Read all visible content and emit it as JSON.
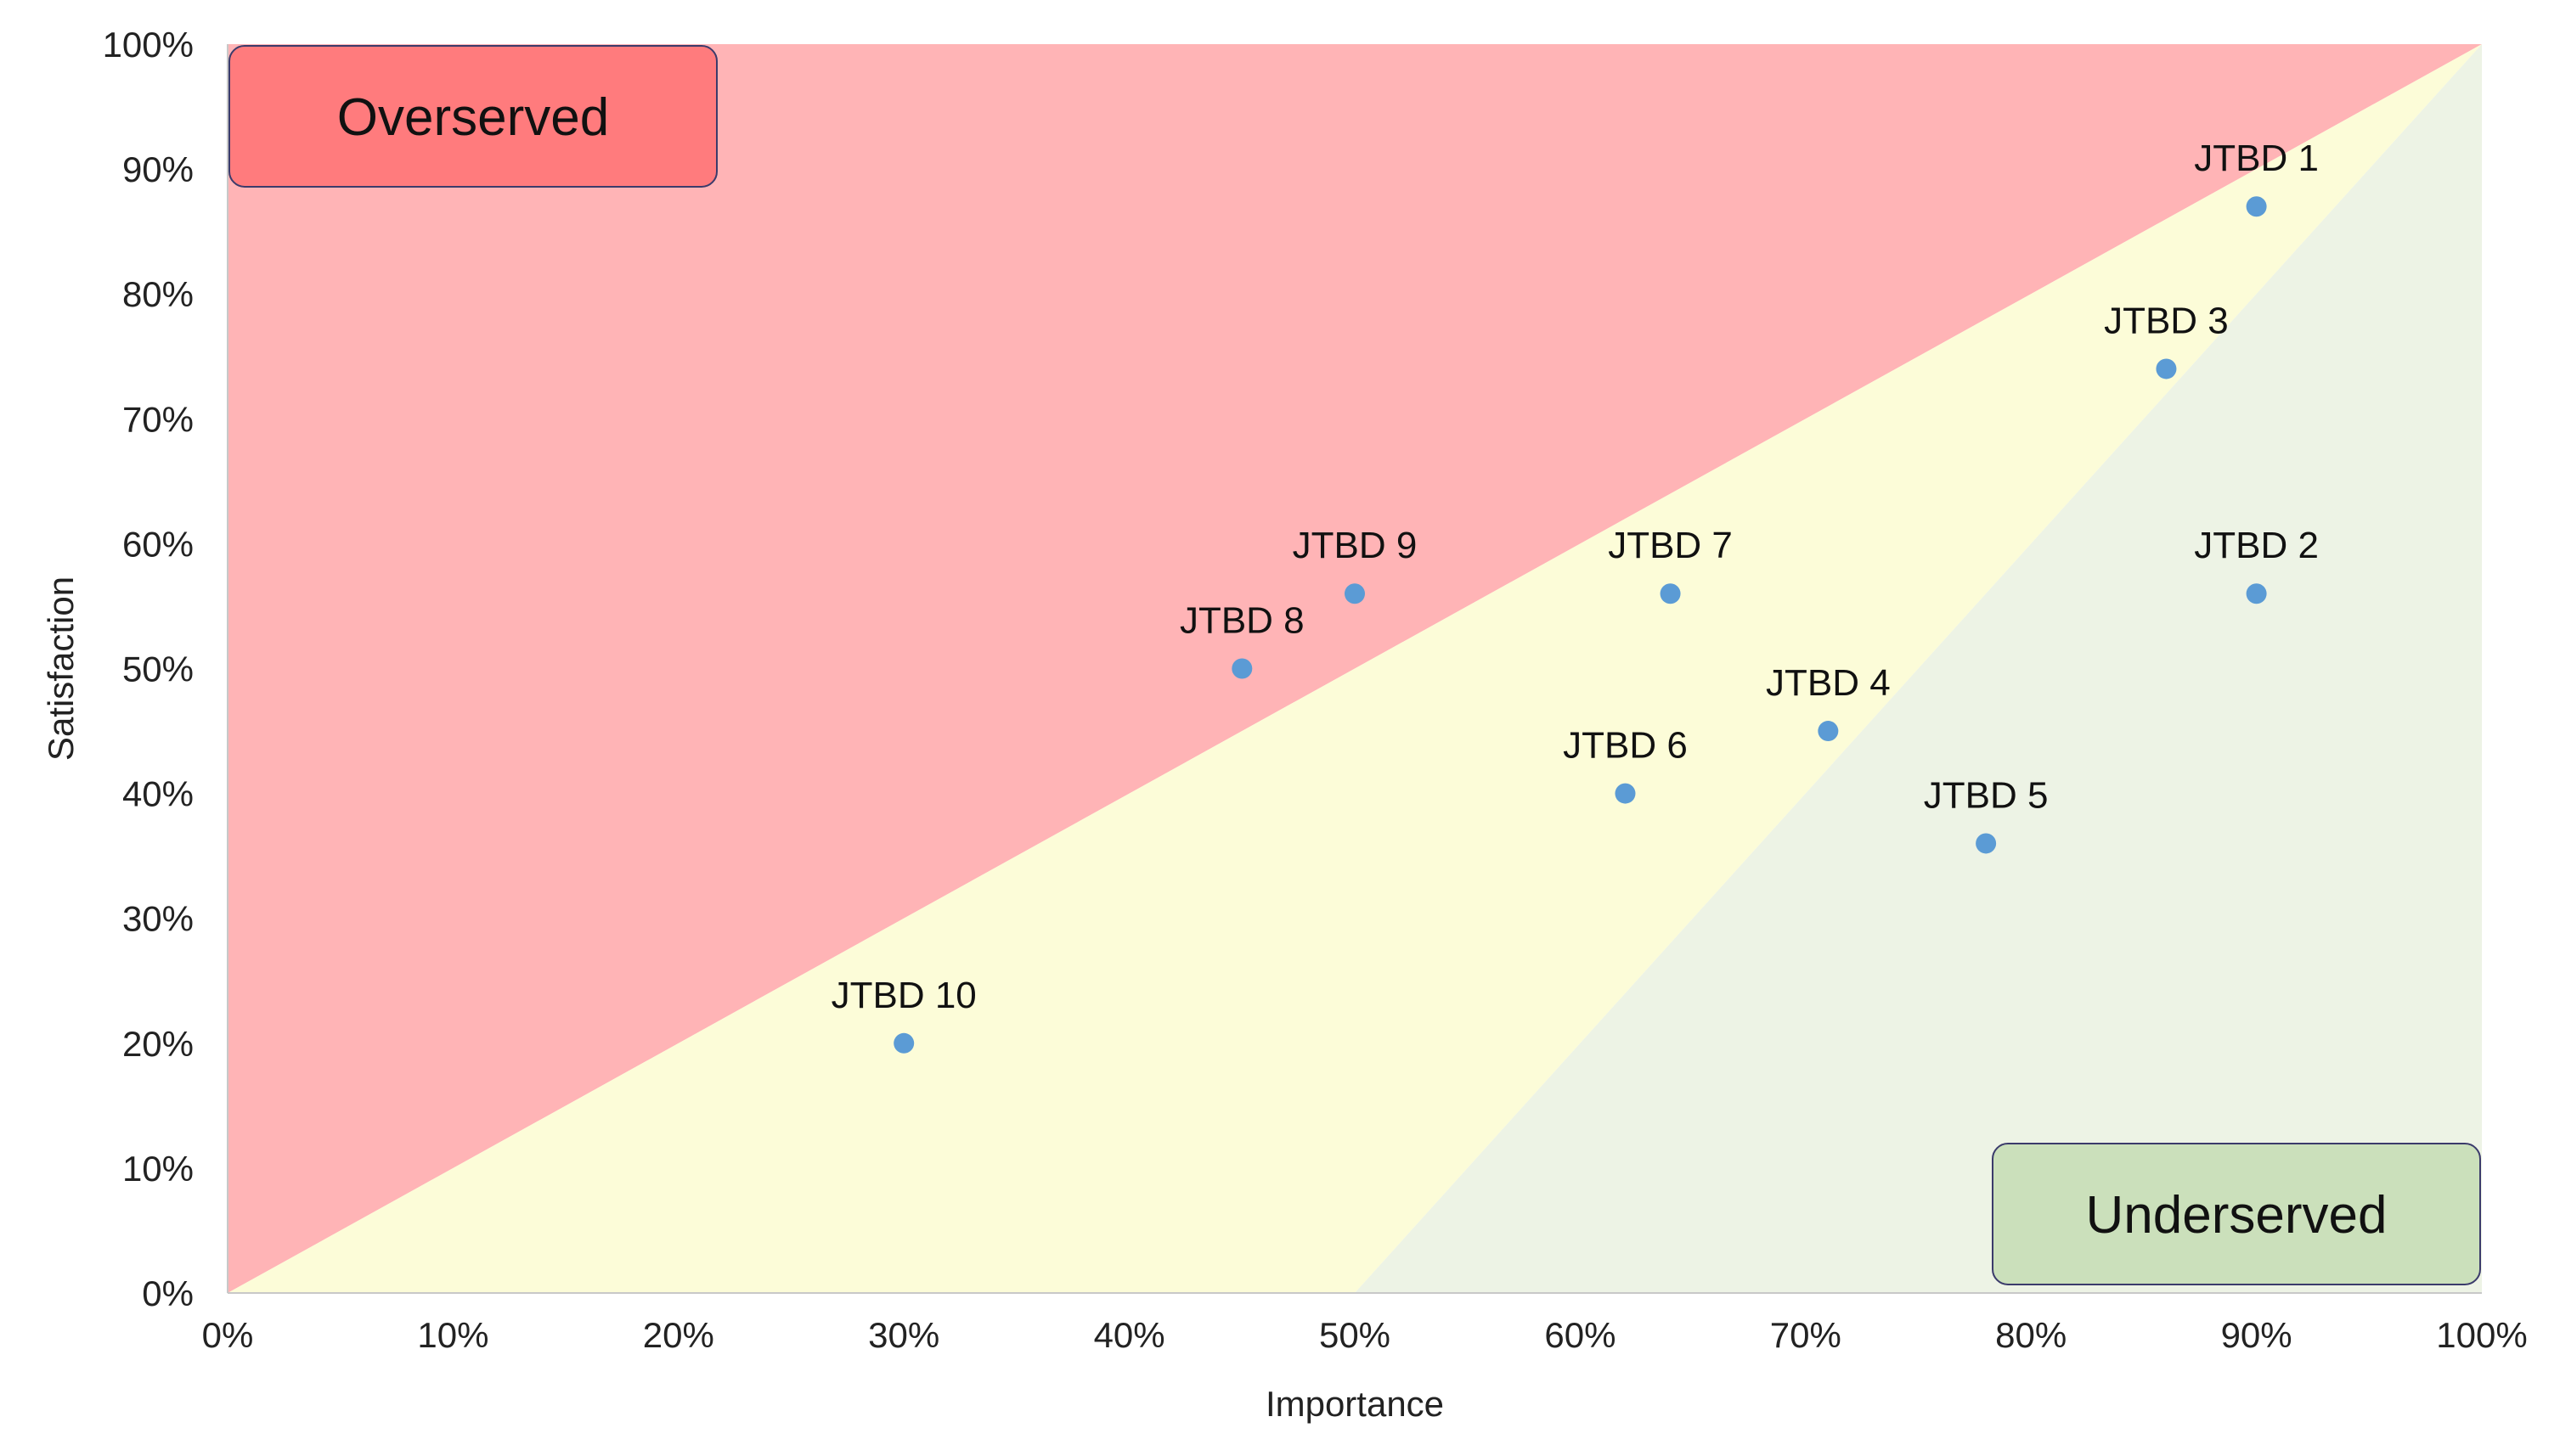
{
  "chart_data": {
    "type": "scatter",
    "title": "",
    "xlabel": "Importance",
    "ylabel": "Satisfaction",
    "xlim": [
      0,
      100
    ],
    "ylim": [
      0,
      100
    ],
    "x_ticks": [
      "0%",
      "10%",
      "20%",
      "30%",
      "40%",
      "50%",
      "60%",
      "70%",
      "80%",
      "90%",
      "100%"
    ],
    "y_ticks": [
      "0%",
      "10%",
      "20%",
      "30%",
      "40%",
      "50%",
      "60%",
      "70%",
      "80%",
      "90%",
      "100%"
    ],
    "grid": false,
    "legend": "none",
    "points": [
      {
        "label": "JTBD 1",
        "x": 90,
        "y": 87
      },
      {
        "label": "JTBD 2",
        "x": 90,
        "y": 56
      },
      {
        "label": "JTBD 3",
        "x": 86,
        "y": 74
      },
      {
        "label": "JTBD 4",
        "x": 71,
        "y": 45
      },
      {
        "label": "JTBD 5",
        "x": 78,
        "y": 36
      },
      {
        "label": "JTBD 6",
        "x": 62,
        "y": 40
      },
      {
        "label": "JTBD 7",
        "x": 64,
        "y": 56
      },
      {
        "label": "JTBD 8",
        "x": 45,
        "y": 50
      },
      {
        "label": "JTBD 9",
        "x": 50,
        "y": 56
      },
      {
        "label": "JTBD 10",
        "x": 30,
        "y": 20
      }
    ],
    "regions": [
      {
        "name": "overserved",
        "polygon": [
          [
            0,
            0
          ],
          [
            100,
            100
          ],
          [
            0,
            100
          ]
        ],
        "color": "#ffb4b6"
      },
      {
        "name": "middle",
        "polygon": [
          [
            0,
            0
          ],
          [
            50,
            0
          ],
          [
            100,
            100
          ]
        ],
        "color": "#fcfcd8"
      },
      {
        "name": "underserved",
        "polygon": [
          [
            50,
            0
          ],
          [
            100,
            0
          ],
          [
            100,
            100
          ]
        ],
        "color": "#edf3e5"
      }
    ],
    "annotations": [
      {
        "text": "Overserved",
        "anchor": "top-left",
        "fill": "#ff7b7d"
      },
      {
        "text": "Underserved",
        "anchor": "bottom-right",
        "fill": "#cbe0bb"
      }
    ],
    "colors": {
      "point": "#5b9bd5",
      "axis": "#c8c8c8",
      "box_border": "#3b3b6b"
    }
  }
}
